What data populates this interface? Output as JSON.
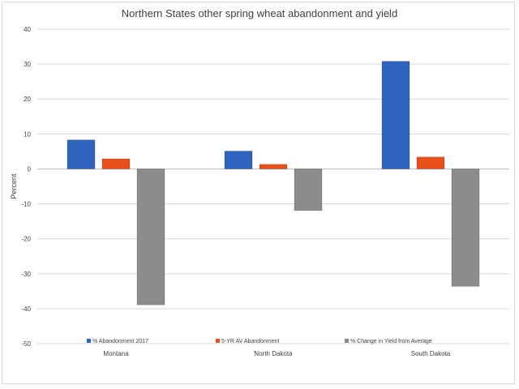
{
  "chart_data": {
    "type": "bar",
    "title": "Northern States other spring wheat abandonment and yield",
    "xlabel": "",
    "ylabel": "Percent",
    "ylim": [
      -50,
      40
    ],
    "yticks": [
      40,
      30,
      20,
      10,
      0,
      -10,
      -20,
      -30,
      -40,
      -50
    ],
    "grid": true,
    "legend_position": "bottom",
    "categories": [
      "Montana",
      "North Dakota",
      "South Dakota"
    ],
    "series": [
      {
        "name": "% Abandonment 2017",
        "color": "#2e63be",
        "values": [
          8.3,
          5.1,
          30.8
        ]
      },
      {
        "name": "5-YR AV Abandonment",
        "color": "#e8501a",
        "values": [
          2.9,
          1.3,
          3.4
        ]
      },
      {
        "name": "%  Change in Yield from Average",
        "color": "#8c8c8c",
        "values": [
          -38.9,
          -11.9,
          -33.6
        ]
      }
    ]
  }
}
